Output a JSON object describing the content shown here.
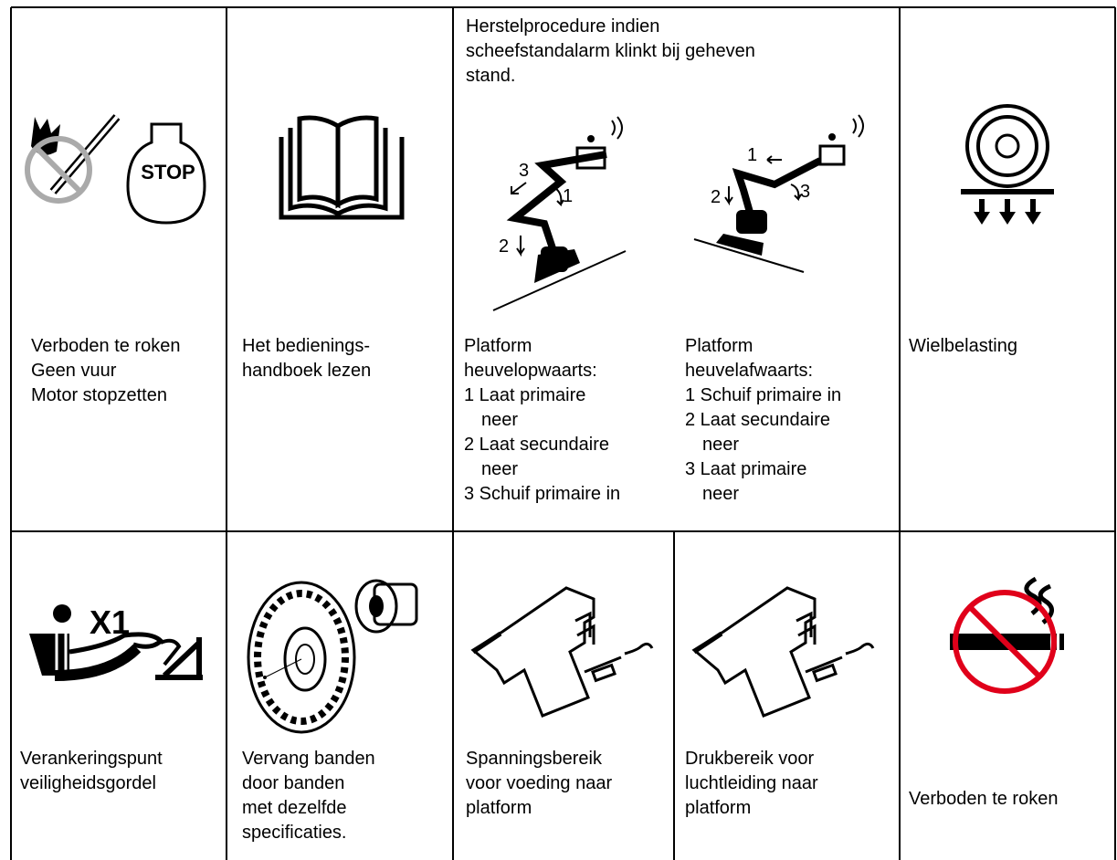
{
  "table": {
    "rows": [
      {
        "cells": [
          {
            "caption": [
              "Verboden te roken",
              "Geen vuur",
              "Motor stopzetten"
            ]
          },
          {
            "caption": [
              "Het bedienings-",
              "handboek lezen"
            ]
          },
          {
            "header": [
              "Herstelprocedure indien",
              "scheefstandalarm klinkt bij geheven",
              "stand."
            ],
            "figure_labels": [
              [
                "3",
                "1",
                "2"
              ],
              [
                "1",
                "3",
                "2"
              ]
            ],
            "procedures": [
              {
                "title": [
                  "Platform",
                  "heuvelopwaarts:"
                ],
                "steps": [
                  [
                    "1 Laat primaire",
                    "neer"
                  ],
                  [
                    "2 Laat secundaire",
                    "neer"
                  ],
                  [
                    "3 Schuif primaire in"
                  ]
                ]
              },
              {
                "title": [
                  "Platform",
                  "heuvelafwaarts:"
                ],
                "steps": [
                  [
                    "1 Schuif primaire in"
                  ],
                  [
                    "2 Laat secundaire",
                    "neer"
                  ],
                  [
                    "3 Laat primaire",
                    "neer"
                  ]
                ]
              }
            ]
          },
          {
            "caption": [
              "Wielbelasting"
            ]
          }
        ]
      },
      {
        "cells": [
          {
            "caption": [
              "Verankeringspunt",
              "veiligheidsgordel"
            ],
            "icon_label": "X1"
          },
          {
            "caption": [
              "Vervang banden",
              "door banden",
              "met dezelfde",
              "specificaties."
            ]
          },
          {
            "caption": [
              "Spanningsbereik",
              "voor voeding naar",
              "platform"
            ]
          },
          {
            "caption": [
              "Drukbereik voor",
              "luchtleiding naar",
              "platform"
            ]
          },
          {
            "caption": [
              "Verboden te roken"
            ]
          }
        ]
      }
    ]
  }
}
